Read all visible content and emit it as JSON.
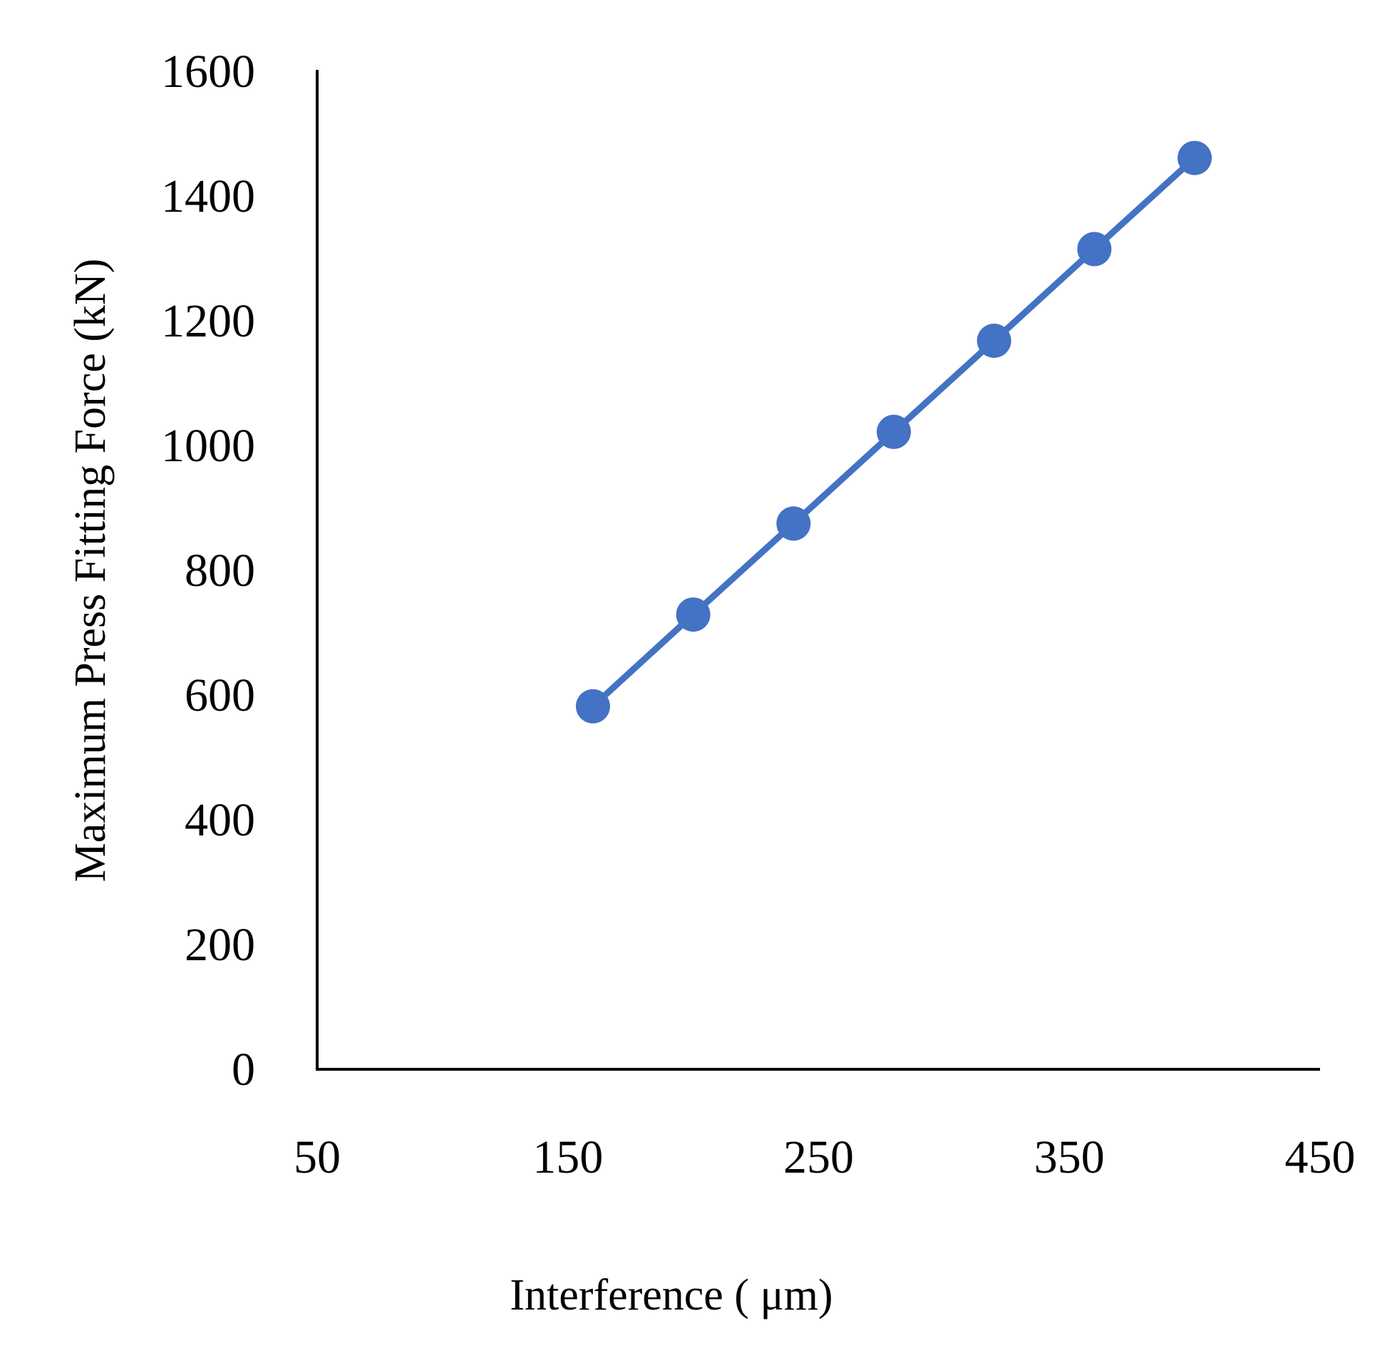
{
  "chart_data": {
    "type": "line",
    "title": "",
    "xlabel": "Interference ( μm)",
    "ylabel": "Maximum Press Fitting Force (kN)",
    "xlim": [
      50,
      450
    ],
    "ylim": [
      0,
      1600
    ],
    "xticks": [
      50,
      150,
      250,
      350,
      450
    ],
    "yticks": [
      0,
      200,
      400,
      600,
      800,
      1000,
      1200,
      1400,
      1600
    ],
    "grid": false,
    "legend": "none",
    "series": [
      {
        "x": [
          160,
          200,
          240,
          280,
          320,
          360,
          400
        ],
        "values": [
          582,
          729,
          875,
          1022,
          1168,
          1315,
          1461
        ],
        "color": "#4472C4",
        "marker": "circle"
      }
    ]
  }
}
